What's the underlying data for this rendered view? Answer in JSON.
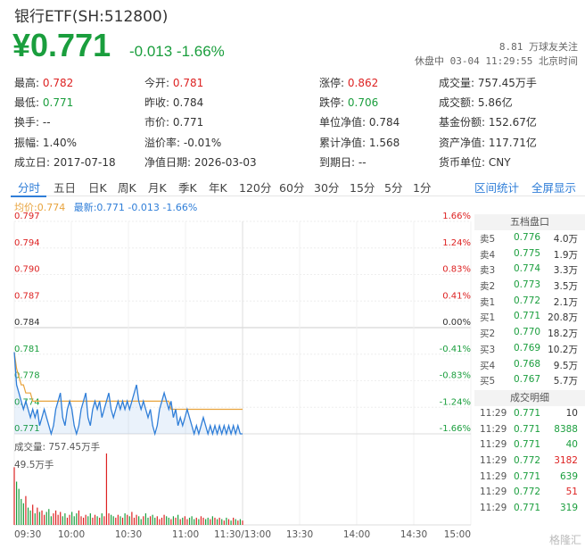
{
  "header": {
    "title": "银行ETF(SH:512800)",
    "price": "¥0.771",
    "change": "-0.013 -1.66%",
    "followers": "8.81 万球友关注",
    "status": "休盘中 03-04 11:29:55 北京时间"
  },
  "stats": {
    "high_l": "最高:",
    "high_v": "0.782",
    "open_l": "今开:",
    "open_v": "0.781",
    "limitup_l": "涨停:",
    "limitup_v": "0.862",
    "vol_l": "成交量:",
    "vol_v": "757.45万手",
    "low_l": "最低:",
    "low_v": "0.771",
    "prev_l": "昨收:",
    "prev_v": "0.784",
    "limitdown_l": "跌停:",
    "limitdown_v": "0.706",
    "amount_l": "成交额:",
    "amount_v": "5.86亿",
    "turnover_l": "换手:",
    "turnover_v": "--",
    "mktprice_l": "市价:",
    "mktprice_v": "0.771",
    "nav_l": "单位净值:",
    "nav_v": "0.784",
    "fundshare_l": "基金份额:",
    "fundshare_v": "152.67亿",
    "amp_l": "振幅:",
    "amp_v": "1.40%",
    "premium_l": "溢价率:",
    "premium_v": "-0.01%",
    "cumnav_l": "累计净值:",
    "cumnav_v": "1.568",
    "assets_l": "资产净值:",
    "assets_v": "117.71亿",
    "founded_l": "成立日:",
    "founded_v": "2017-07-18",
    "navdate_l": "净值日期:",
    "navdate_v": "2026-03-03",
    "maturity_l": "到期日:",
    "maturity_v": "--",
    "currency_l": "货币单位:",
    "currency_v": "CNY"
  },
  "tabs": [
    "分时",
    "五日",
    "日K",
    "周K",
    "月K",
    "季K",
    "年K",
    "120分",
    "60分",
    "30分",
    "15分",
    "5分",
    "1分"
  ],
  "links": {
    "range_stats": "区间统计",
    "fullscreen": "全屏显示"
  },
  "legend": {
    "avg": "均价:0.774",
    "latest": "最新:0.771 -0.013 -1.66%"
  },
  "chart_data": {
    "type": "line",
    "y_ticks_left": [
      "0.797",
      "0.794",
      "0.790",
      "0.787",
      "0.784",
      "0.781",
      "0.778",
      "0.774",
      "0.771"
    ],
    "y_ticks_right": [
      "1.66%",
      "1.24%",
      "0.83%",
      "0.41%",
      "0.00%",
      "-0.41%",
      "-0.83%",
      "-1.24%",
      "-1.66%"
    ],
    "x_ticks": [
      "09:30",
      "10:00",
      "10:30",
      "11:00",
      "11:30/13:00",
      "13:30",
      "14:00",
      "14:30",
      "15:00"
    ],
    "ylim": [
      0.771,
      0.797
    ],
    "volume_label": "成交量: 757.45万手",
    "volume_max_label": "49.5万手",
    "price": [
      0.781,
      0.777,
      0.776,
      0.775,
      0.774,
      0.775,
      0.774,
      0.773,
      0.774,
      0.773,
      0.774,
      0.772,
      0.773,
      0.774,
      0.773,
      0.772,
      0.771,
      0.772,
      0.774,
      0.775,
      0.776,
      0.773,
      0.772,
      0.774,
      0.775,
      0.774,
      0.772,
      0.771,
      0.772,
      0.774,
      0.775,
      0.776,
      0.773,
      0.772,
      0.774,
      0.775,
      0.774,
      0.775,
      0.773,
      0.774,
      0.775,
      0.776,
      0.774,
      0.773,
      0.774,
      0.775,
      0.774,
      0.775,
      0.774,
      0.775,
      0.774,
      0.775,
      0.776,
      0.777,
      0.775,
      0.774,
      0.775,
      0.774,
      0.773,
      0.774,
      0.772,
      0.771,
      0.772,
      0.774,
      0.775,
      0.776,
      0.775,
      0.774,
      0.775,
      0.773,
      0.774,
      0.772,
      0.773,
      0.772,
      0.773,
      0.774,
      0.773,
      0.772,
      0.771,
      0.772,
      0.771,
      0.772,
      0.773,
      0.772,
      0.771,
      0.772,
      0.771,
      0.772,
      0.771,
      0.772,
      0.771,
      0.772,
      0.771,
      0.772,
      0.771,
      0.772,
      0.771,
      0.772,
      0.771,
      0.771
    ],
    "avg": [
      0.781,
      0.779,
      0.778,
      0.777,
      0.777,
      0.776,
      0.776,
      0.776,
      0.775,
      0.775,
      0.775,
      0.775,
      0.775,
      0.775,
      0.775,
      0.775,
      0.775,
      0.775,
      0.775,
      0.775,
      0.775,
      0.775,
      0.775,
      0.775,
      0.775,
      0.775,
      0.775,
      0.775,
      0.775,
      0.775,
      0.775,
      0.775,
      0.775,
      0.775,
      0.775,
      0.775,
      0.775,
      0.775,
      0.775,
      0.775,
      0.775,
      0.775,
      0.775,
      0.775,
      0.775,
      0.775,
      0.775,
      0.775,
      0.775,
      0.775,
      0.775,
      0.775,
      0.775,
      0.775,
      0.775,
      0.775,
      0.775,
      0.775,
      0.775,
      0.775,
      0.775,
      0.775,
      0.775,
      0.775,
      0.775,
      0.775,
      0.775,
      0.775,
      0.774,
      0.774,
      0.774,
      0.774,
      0.774,
      0.774,
      0.774,
      0.774,
      0.774,
      0.774,
      0.774,
      0.774,
      0.774,
      0.774,
      0.774,
      0.774,
      0.774,
      0.774,
      0.774,
      0.774,
      0.774,
      0.774,
      0.774,
      0.774,
      0.774,
      0.774,
      0.774,
      0.774,
      0.774,
      0.774,
      0.774,
      0.774
    ],
    "volume": [
      40,
      30,
      25,
      18,
      15,
      20,
      12,
      10,
      14,
      8,
      12,
      9,
      10,
      7,
      9,
      11,
      6,
      8,
      10,
      7,
      9,
      6,
      8,
      5,
      7,
      9,
      6,
      8,
      10,
      6,
      5,
      7,
      6,
      8,
      5,
      7,
      6,
      5,
      8,
      6,
      49.5,
      8,
      7,
      6,
      5,
      7,
      6,
      5,
      8,
      7,
      6,
      9,
      5,
      7,
      6,
      4,
      6,
      8,
      5,
      6,
      7,
      5,
      6,
      4,
      5,
      7,
      6,
      5,
      4,
      6,
      5,
      7,
      4,
      5,
      6,
      4,
      5,
      6,
      4,
      5,
      4,
      6,
      5,
      4,
      5,
      4,
      6,
      5,
      4,
      5,
      4,
      3,
      5,
      4,
      3,
      5,
      4,
      3,
      4,
      3
    ]
  },
  "order_book": {
    "header": "五档盘口",
    "asks": [
      {
        "label": "卖5",
        "price": "0.776",
        "vol": "4.0万"
      },
      {
        "label": "卖4",
        "price": "0.775",
        "vol": "1.9万"
      },
      {
        "label": "卖3",
        "price": "0.774",
        "vol": "3.3万"
      },
      {
        "label": "卖2",
        "price": "0.773",
        "vol": "3.5万"
      },
      {
        "label": "卖1",
        "price": "0.772",
        "vol": "2.1万"
      }
    ],
    "bids": [
      {
        "label": "买1",
        "price": "0.771",
        "vol": "20.8万"
      },
      {
        "label": "买2",
        "price": "0.770",
        "vol": "18.2万"
      },
      {
        "label": "买3",
        "price": "0.769",
        "vol": "10.2万"
      },
      {
        "label": "买4",
        "price": "0.768",
        "vol": "9.5万"
      },
      {
        "label": "买5",
        "price": "0.767",
        "vol": "5.7万"
      }
    ],
    "trades_header": "成交明细",
    "trades": [
      {
        "time": "11:29",
        "price": "0.771",
        "vol": "10",
        "color": "#333"
      },
      {
        "time": "11:29",
        "price": "0.771",
        "vol": "8388",
        "color": "#1a9e3d"
      },
      {
        "time": "11:29",
        "price": "0.771",
        "vol": "40",
        "color": "#1a9e3d"
      },
      {
        "time": "11:29",
        "price": "0.772",
        "vol": "3182",
        "color": "#d22"
      },
      {
        "time": "11:29",
        "price": "0.771",
        "vol": "639",
        "color": "#1a9e3d"
      },
      {
        "time": "11:29",
        "price": "0.772",
        "vol": "51",
        "color": "#d22"
      },
      {
        "time": "11:29",
        "price": "0.771",
        "vol": "319",
        "color": "#1a9e3d"
      }
    ]
  },
  "watermark": "格隆汇"
}
